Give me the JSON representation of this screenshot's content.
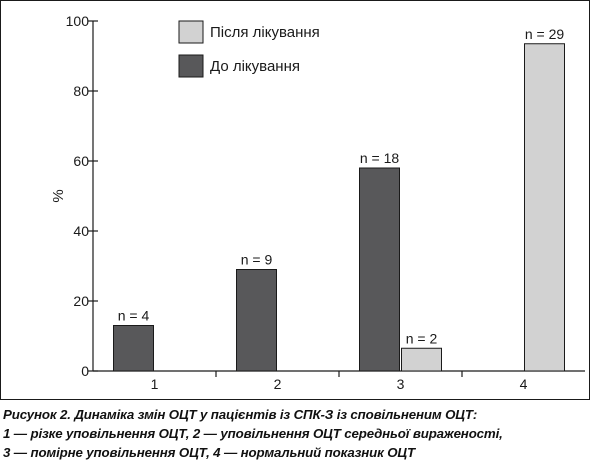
{
  "chart_data": {
    "type": "bar",
    "ylabel": "%",
    "ylim": [
      0,
      100
    ],
    "yticks": [
      0,
      20,
      40,
      60,
      80,
      100
    ],
    "categories": [
      "1",
      "2",
      "3",
      "4"
    ],
    "series": [
      {
        "name": "Після лікування",
        "color": "#d2d2d2",
        "values": [
          null,
          null,
          6.5,
          93.5
        ],
        "labels": [
          "",
          "",
          "n = 2",
          "n = 29"
        ]
      },
      {
        "name": "До лікування",
        "color": "#58585a",
        "values": [
          13,
          29,
          58,
          null
        ],
        "labels": [
          "n = 4",
          "n = 9",
          "n = 18",
          ""
        ]
      }
    ],
    "legend_position": "top-center",
    "grid": false
  },
  "caption": {
    "line1": "Рисунок 2. Динаміка змін ОЦТ у пацієнтів із СПК-З із сповільненим ОЦТ:",
    "line2": "1 — різке уповільнення ОЦТ, 2 — уповільнення ОЦТ середньої вираженості,",
    "line3": "3 — помірне уповільнення ОЦТ, 4 — нормальний показник ОЦТ"
  }
}
